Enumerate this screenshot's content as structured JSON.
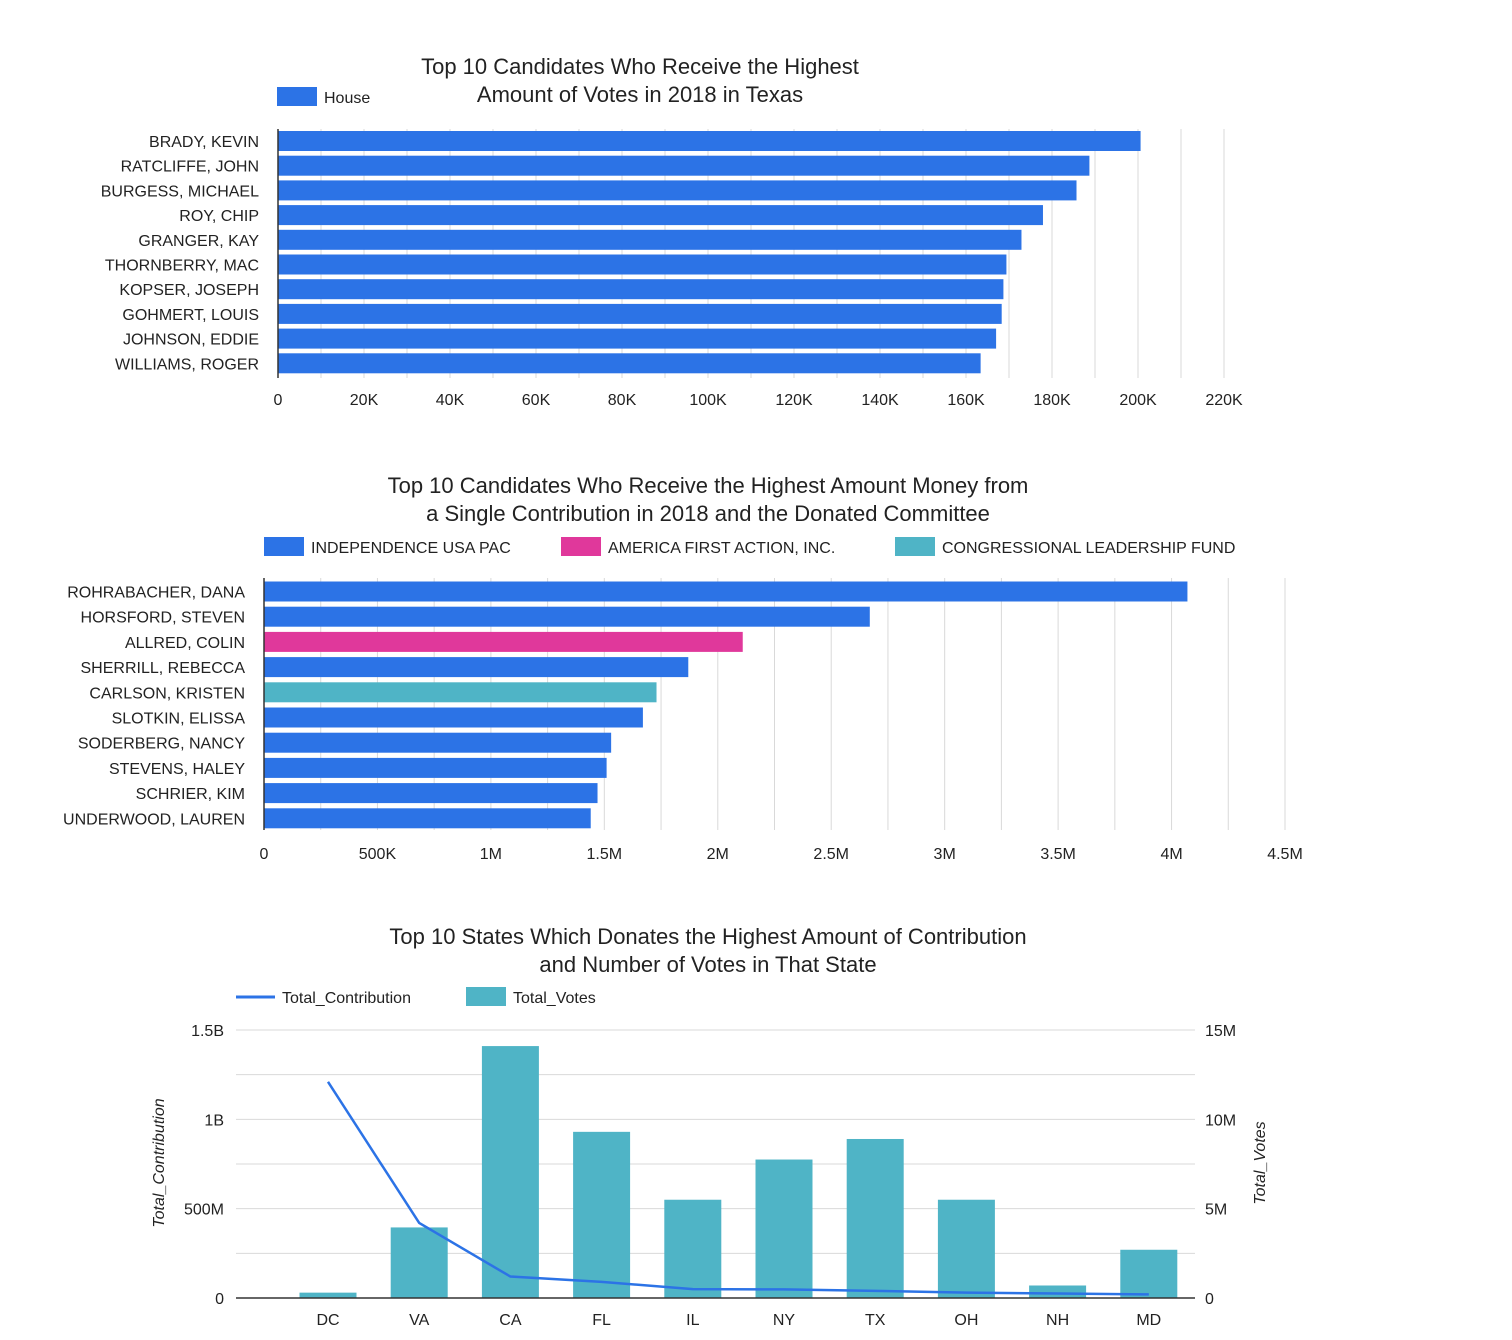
{
  "chart_data": [
    {
      "type": "bar",
      "orientation": "horizontal",
      "title": [
        "Top 10 Candidates Who Receive the Highest",
        "Amount of Votes in 2018 in Texas"
      ],
      "legend": [
        {
          "name": "House",
          "color": "#2c73e6"
        }
      ],
      "categories": [
        "BRADY, KEVIN",
        "RATCLIFFE, JOHN",
        "BURGESS, MICHAEL",
        "ROY, CHIP",
        "GRANGER, KAY",
        "THORNBERRY, MAC",
        "KOPSER, JOSEPH",
        "GOHMERT, LOUIS",
        "JOHNSON, EDDIE",
        "WILLIAMS, ROGER"
      ],
      "values": [
        200600,
        188700,
        185700,
        177900,
        172900,
        169400,
        168700,
        168300,
        167000,
        163400
      ],
      "colors": [
        "#2c73e6",
        "#2c73e6",
        "#2c73e6",
        "#2c73e6",
        "#2c73e6",
        "#2c73e6",
        "#2c73e6",
        "#2c73e6",
        "#2c73e6",
        "#2c73e6"
      ],
      "xlim": [
        0,
        220000
      ],
      "xticks": [
        {
          "v": 0,
          "label": "0"
        },
        {
          "v": 20000,
          "label": "20K"
        },
        {
          "v": 40000,
          "label": "40K"
        },
        {
          "v": 60000,
          "label": "60K"
        },
        {
          "v": 80000,
          "label": "80K"
        },
        {
          "v": 100000,
          "label": "100K"
        },
        {
          "v": 120000,
          "label": "120K"
        },
        {
          "v": 140000,
          "label": "140K"
        },
        {
          "v": 160000,
          "label": "160K"
        },
        {
          "v": 180000,
          "label": "180K"
        },
        {
          "v": 200000,
          "label": "200K"
        },
        {
          "v": 220000,
          "label": "220K"
        }
      ],
      "grid": true
    },
    {
      "type": "bar",
      "orientation": "horizontal",
      "title": [
        "Top 10 Candidates Who Receive the Highest Amount Money from",
        "a Single Contribution in 2018 and the Donated Committee"
      ],
      "legend": [
        {
          "name": "INDEPENDENCE USA PAC",
          "color": "#2c73e6"
        },
        {
          "name": "AMERICA FIRST ACTION, INC.",
          "color": "#e0389b"
        },
        {
          "name": "CONGRESSIONAL LEADERSHIP FUND",
          "color": "#4fb4c6"
        }
      ],
      "categories": [
        "ROHRABACHER, DANA",
        "HORSFORD, STEVEN",
        "ALLRED, COLIN",
        "SHERRILL, REBECCA",
        "CARLSON, KRISTEN",
        "SLOTKIN, ELISSA",
        "SODERBERG, NANCY",
        "STEVENS, HALEY",
        "SCHRIER, KIM",
        "UNDERWOOD, LAUREN"
      ],
      "values": [
        4070000,
        2670000,
        2110000,
        1870000,
        1730000,
        1670000,
        1530000,
        1510000,
        1470000,
        1440000
      ],
      "colors": [
        "#2c73e6",
        "#2c73e6",
        "#e0389b",
        "#2c73e6",
        "#4fb4c6",
        "#2c73e6",
        "#2c73e6",
        "#2c73e6",
        "#2c73e6",
        "#2c73e6"
      ],
      "xlim": [
        0,
        4500000
      ],
      "xticks": [
        {
          "v": 0,
          "label": "0"
        },
        {
          "v": 500000,
          "label": "500K"
        },
        {
          "v": 1000000,
          "label": "1M"
        },
        {
          "v": 1500000,
          "label": "1.5M"
        },
        {
          "v": 2000000,
          "label": "2M"
        },
        {
          "v": 2500000,
          "label": "2.5M"
        },
        {
          "v": 3000000,
          "label": "3M"
        },
        {
          "v": 3500000,
          "label": "3.5M"
        },
        {
          "v": 4000000,
          "label": "4M"
        },
        {
          "v": 4500000,
          "label": "4.5M"
        }
      ],
      "grid": true
    },
    {
      "type": "combo",
      "title": [
        "Top 10 States Which Donates the Highest Amount of Contribution",
        "and Number of Votes in That State"
      ],
      "categories": [
        "DC",
        "VA",
        "CA",
        "FL",
        "IL",
        "NY",
        "TX",
        "OH",
        "NH",
        "MD"
      ],
      "series": [
        {
          "name": "Total_Contribution",
          "type": "line",
          "axis": "left",
          "color": "#2c73e6",
          "values": [
            1210000000,
            420000000,
            120000000,
            90000000,
            50000000,
            48000000,
            40000000,
            30000000,
            25000000,
            20000000
          ]
        },
        {
          "name": "Total_Votes",
          "type": "bar",
          "axis": "right",
          "color": "#4fb4c6",
          "values": [
            300000,
            3950000,
            14100000,
            9300000,
            5500000,
            7750000,
            8900000,
            5500000,
            700000,
            2700000
          ]
        }
      ],
      "ylabel_left": "Total_Contribution",
      "ylabel_right": "Total_Votes",
      "ylim_left": [
        0,
        1500000000
      ],
      "ylim_right": [
        0,
        15000000
      ],
      "yticks_left": [
        {
          "v": 0,
          "label": "0"
        },
        {
          "v": 500000000,
          "label": "500M"
        },
        {
          "v": 1000000000,
          "label": "1B"
        },
        {
          "v": 1500000000,
          "label": "1.5B"
        }
      ],
      "yticks_right": [
        {
          "v": 0,
          "label": "0"
        },
        {
          "v": 5000000,
          "label": "5M"
        },
        {
          "v": 10000000,
          "label": "10M"
        },
        {
          "v": 15000000,
          "label": "15M"
        }
      ],
      "grid": true
    }
  ]
}
